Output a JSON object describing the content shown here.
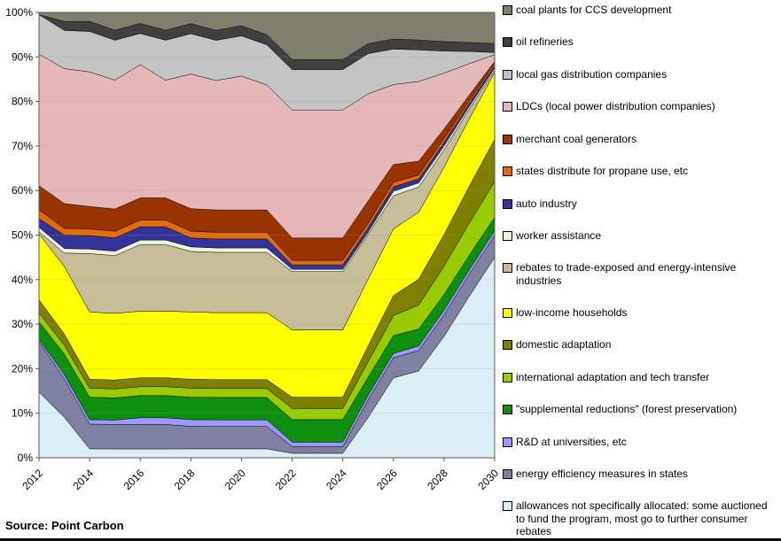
{
  "page": {
    "source_label": "Source: Point Carbon"
  },
  "chart_data": {
    "type": "area",
    "variant": "100% stacked area (allowance allocation shares)",
    "title": "",
    "xlabel": "",
    "ylabel": "",
    "ylim": [
      0,
      100
    ],
    "grid": true,
    "legend_position": "right",
    "stack_order": "bottom-to-top; legend lists series top-to-bottom",
    "x": [
      2012,
      2013,
      2014,
      2015,
      2016,
      2017,
      2018,
      2019,
      2020,
      2021,
      2022,
      2023,
      2024,
      2025,
      2026,
      2027,
      2028,
      2029,
      2030
    ],
    "x_tick_labels": [
      "2012",
      "2014",
      "2016",
      "2018",
      "2020",
      "2022",
      "2024",
      "2026",
      "2028",
      "2030"
    ],
    "y_tick_labels": [
      "0%",
      "10%",
      "20%",
      "30%",
      "40%",
      "50%",
      "60%",
      "70%",
      "80%",
      "90%",
      "100%"
    ],
    "series": [
      {
        "name": "allowances not specifically allocated: some auctioned to fund the program, most go to further consumer rebates",
        "color": "#daeef3",
        "values": [
          15,
          9,
          2,
          2,
          2,
          2,
          2,
          2,
          2,
          2,
          1,
          1,
          1,
          9,
          18,
          19.5,
          27,
          36,
          45
        ]
      },
      {
        "name": "energy efficiency measures in states",
        "color": "#8080a0",
        "values": [
          11.5,
          8.5,
          5.5,
          5.5,
          5.5,
          5.5,
          5,
          5,
          5,
          5,
          1.5,
          1.5,
          1.5,
          4,
          4.5,
          4.6,
          4.8,
          4.9,
          5
        ]
      },
      {
        "name": "R&D at universities, etc",
        "color": "#9999ff",
        "values": [
          0.5,
          1,
          1,
          1,
          1.5,
          1.5,
          1.5,
          1.5,
          1.5,
          1.5,
          1,
          1,
          1,
          1,
          1,
          1,
          1,
          1,
          1
        ]
      },
      {
        "name": "\"supplemental reductions\" (forest preservation)",
        "color": "#0d8f0d",
        "values": [
          4,
          4.5,
          5,
          5,
          5,
          5,
          5,
          5,
          5,
          5,
          5,
          5,
          5,
          4,
          4,
          3.8,
          3.5,
          3.2,
          3
        ]
      },
      {
        "name": "international adaptation and tech transfer",
        "color": "#99cc00",
        "values": [
          2,
          2,
          2,
          2,
          2,
          2,
          2,
          2,
          2,
          2,
          2.5,
          2.5,
          2.5,
          3.5,
          4.5,
          5.4,
          6.3,
          7.2,
          8
        ]
      },
      {
        "name": "domestic adaptation",
        "color": "#808000",
        "values": [
          3,
          2.5,
          2,
          2,
          2,
          2,
          2,
          2,
          2,
          2,
          2.5,
          2.5,
          2.5,
          3.5,
          4.5,
          5.8,
          7,
          8.2,
          9.5
        ]
      },
      {
        "name": "low-income households",
        "color": "#ffff00",
        "values": [
          15,
          15,
          15,
          15,
          15,
          15,
          15,
          15,
          15,
          15,
          15,
          15,
          15,
          15,
          15,
          15,
          15,
          15,
          15
        ]
      },
      {
        "name": "rebates to trade-exposed and energy-intensive industries",
        "color": "#c4bd97",
        "values": [
          0.5,
          3,
          13,
          13,
          15,
          15,
          13.5,
          13.5,
          13.5,
          13.5,
          13,
          13,
          13,
          10,
          7.5,
          5.7,
          3.9,
          2.2,
          0.5
        ]
      },
      {
        "name": "worker assistance",
        "color": "#edf2df",
        "values": [
          1,
          1,
          1,
          1,
          1,
          1,
          1,
          1,
          1,
          1,
          0.5,
          0.5,
          0.5,
          0.5,
          1,
          0.9,
          0.8,
          0.6,
          0.5
        ]
      },
      {
        "name": "auto industry",
        "color": "#333399",
        "values": [
          2,
          3,
          3,
          3,
          3,
          3,
          2,
          2,
          2,
          2,
          1,
          1,
          1,
          1,
          1,
          0.9,
          0.8,
          0.6,
          0.5
        ]
      },
      {
        "name": "states distribute for propane use, etc",
        "color": "#e36c0a",
        "values": [
          2,
          1.5,
          1.5,
          1.5,
          1.5,
          1.5,
          1.5,
          1.5,
          1.5,
          1.5,
          1,
          1,
          1,
          1,
          1,
          0.9,
          0.8,
          0.6,
          0.5
        ]
      },
      {
        "name": "merchant coal generators",
        "color": "#993300",
        "values": [
          5.5,
          5.5,
          5,
          5,
          5,
          5,
          5,
          5,
          5,
          5,
          5,
          5,
          5,
          5,
          4,
          3.1,
          2.2,
          1.3,
          0.5
        ]
      },
      {
        "name": "LDCs (local power  distribution companies)",
        "color": "#e5b8b7",
        "values": [
          30,
          30,
          30,
          29,
          30,
          26.5,
          30,
          29,
          30,
          28,
          28.5,
          28.5,
          28.5,
          24,
          18,
          17.9,
          12.4,
          7,
          1.5
        ]
      },
      {
        "name": "local gas distribution companies",
        "color": "#c4c4c4",
        "values": [
          9,
          8.5,
          9,
          9,
          7,
          9,
          9,
          9,
          9,
          9,
          9,
          9,
          9,
          9,
          8,
          7.1,
          4.9,
          2.7,
          0.5
        ]
      },
      {
        "name": "oil refineries",
        "color": "#404040",
        "values": [
          0,
          2,
          2.25,
          2.25,
          2.25,
          2.25,
          2.25,
          2.25,
          2.25,
          2.25,
          2.25,
          2.25,
          2.25,
          2.25,
          2.25,
          2.2,
          2.1,
          2,
          2
        ]
      },
      {
        "name": "coal plants for CCS development",
        "color": "#7f7f6d",
        "values": [
          0.5,
          2,
          2,
          4,
          2.5,
          4,
          2.5,
          4,
          3,
          5,
          10.5,
          10.5,
          10.5,
          7,
          6,
          6.2,
          6.5,
          6.7,
          7
        ]
      }
    ]
  }
}
